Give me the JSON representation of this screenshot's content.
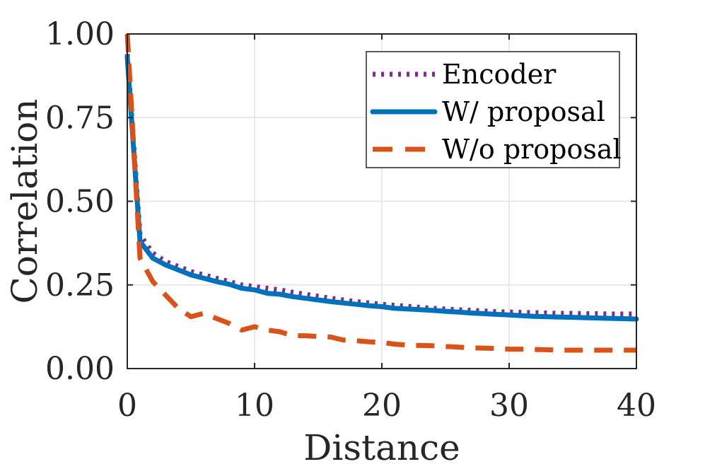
{
  "chart_data": {
    "type": "line",
    "title": "",
    "xlabel": "Distance",
    "ylabel": "Correlation",
    "xlim": [
      0,
      40
    ],
    "ylim": [
      0,
      1
    ],
    "xticks": [
      0,
      10,
      20,
      30,
      40
    ],
    "xtick_labels": [
      "0",
      "10",
      "20",
      "30",
      "40"
    ],
    "yticks": [
      0,
      0.25,
      0.5,
      0.75,
      1.0
    ],
    "ytick_labels": [
      "0.00",
      "0.25",
      "0.50",
      "0.75",
      "1.00"
    ],
    "grid": true,
    "legend_position": "top-right",
    "x": [
      0,
      1,
      2,
      3,
      4,
      5,
      6,
      7,
      8,
      9,
      10,
      11,
      12,
      13,
      14,
      15,
      16,
      17,
      18,
      19,
      20,
      21,
      22,
      23,
      24,
      25,
      26,
      27,
      28,
      29,
      30,
      31,
      32,
      33,
      34,
      35,
      36,
      37,
      38,
      39,
      40
    ],
    "series": [
      {
        "name": "Encoder",
        "style": "dotted",
        "color": "#7E2F8E",
        "values": [
          0.94,
          0.4,
          0.345,
          0.32,
          0.305,
          0.29,
          0.28,
          0.27,
          0.26,
          0.25,
          0.245,
          0.24,
          0.235,
          0.228,
          0.222,
          0.216,
          0.21,
          0.205,
          0.2,
          0.196,
          0.192,
          0.189,
          0.186,
          0.183,
          0.18,
          0.178,
          0.176,
          0.174,
          0.172,
          0.17,
          0.169,
          0.168,
          0.167,
          0.166,
          0.165,
          0.165,
          0.164,
          0.164,
          0.163,
          0.163,
          0.163
        ]
      },
      {
        "name": "W/ proposal",
        "style": "solid",
        "color": "#0072BD",
        "values": [
          0.93,
          0.38,
          0.33,
          0.31,
          0.295,
          0.28,
          0.27,
          0.26,
          0.252,
          0.24,
          0.235,
          0.225,
          0.222,
          0.215,
          0.21,
          0.205,
          0.2,
          0.196,
          0.192,
          0.188,
          0.185,
          0.18,
          0.178,
          0.176,
          0.174,
          0.171,
          0.169,
          0.166,
          0.164,
          0.162,
          0.16,
          0.158,
          0.156,
          0.155,
          0.154,
          0.153,
          0.152,
          0.151,
          0.15,
          0.149,
          0.148
        ]
      },
      {
        "name": "W/o proposal",
        "style": "dashed",
        "color": "#D95319",
        "values": [
          1.0,
          0.33,
          0.26,
          0.22,
          0.18,
          0.155,
          0.165,
          0.15,
          0.135,
          0.115,
          0.125,
          0.115,
          0.11,
          0.098,
          0.098,
          0.096,
          0.094,
          0.085,
          0.083,
          0.08,
          0.078,
          0.073,
          0.07,
          0.069,
          0.068,
          0.066,
          0.064,
          0.062,
          0.061,
          0.06,
          0.058,
          0.058,
          0.057,
          0.056,
          0.055,
          0.055,
          0.055,
          0.055,
          0.055,
          0.055,
          0.055
        ]
      }
    ]
  }
}
